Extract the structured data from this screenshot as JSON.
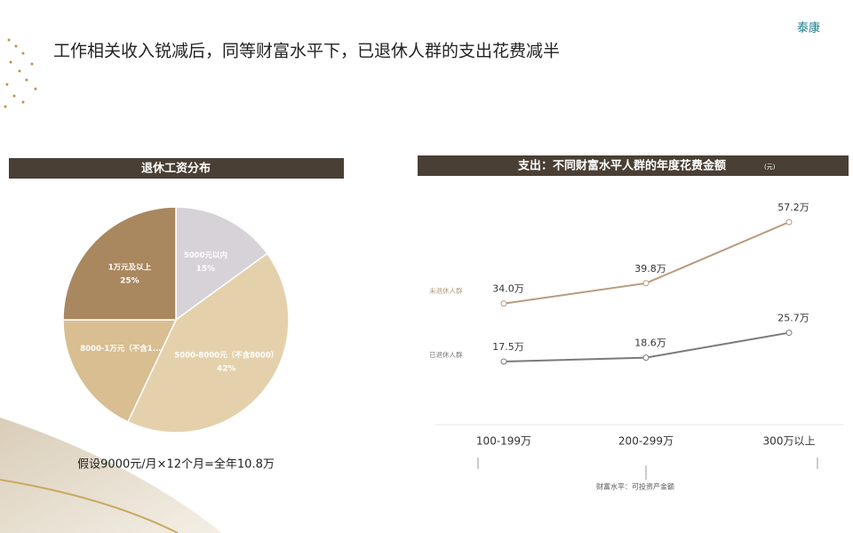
{
  "header": {
    "title": "工作相关收入锐减后，同等财富水平下，已退休人群的支出花费减半",
    "logo": "泰康"
  },
  "chart_data": [
    {
      "type": "pie",
      "title": "退休工资分布",
      "categories": [
        "5000元以内",
        "5000-8000元（不含8000）",
        "8000-1万元（不含1...",
        "1万元及以上"
      ],
      "values": [
        15,
        42,
        18,
        25
      ],
      "value_labels": [
        "15%",
        "42%",
        null,
        "25%"
      ],
      "colors": [
        "#d6d2d8",
        "#e4d1ac",
        "#d8be90",
        "#a9875f"
      ],
      "annotation": "假设9000元/月×12个月=全年10.8万"
    },
    {
      "type": "line",
      "title": "支出：不同财富水平人群的年度花费金额",
      "unit": "(元)",
      "categories": [
        "100-199万",
        "200-299万",
        "300万以上"
      ],
      "xlabel": "财富水平：可投资产金额",
      "series": [
        {
          "name": "未退休人群",
          "color": "#b89b7c",
          "values": [
            34.0,
            39.8,
            57.2
          ],
          "value_labels": [
            "34.0万",
            "39.8万",
            "57.2万"
          ]
        },
        {
          "name": "已退休人群",
          "color": "#7a7a7a",
          "values": [
            17.5,
            18.6,
            25.7
          ],
          "value_labels": [
            "17.5万",
            "18.6万",
            "25.7万"
          ]
        }
      ]
    }
  ]
}
